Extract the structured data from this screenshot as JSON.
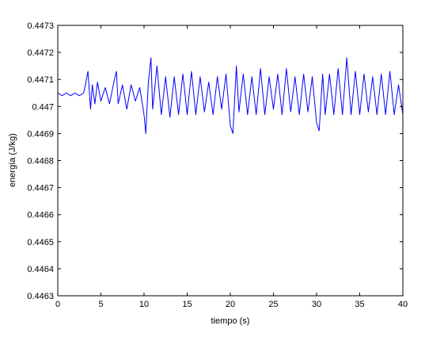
{
  "chart_data": {
    "type": "line",
    "title": "",
    "xlabel": "tiempo (s)",
    "ylabel": "energía (J/kg)",
    "xlim": [
      0,
      40
    ],
    "ylim": [
      0.4463,
      0.4473
    ],
    "xticks": [
      0,
      5,
      10,
      15,
      20,
      25,
      30,
      35,
      40
    ],
    "xtick_labels": [
      "0",
      "5",
      "10",
      "15",
      "20",
      "25",
      "30",
      "35",
      "40"
    ],
    "yticks": [
      0.4463,
      0.4464,
      0.4465,
      0.4466,
      0.4467,
      0.4468,
      0.4469,
      0.447,
      0.4471,
      0.4472,
      0.4473
    ],
    "ytick_labels": [
      "0.4463",
      "0.4464",
      "0.4465",
      "0.4466",
      "0.4467",
      "0.4468",
      "0.4469",
      "0.447",
      "0.4471",
      "0.4472",
      "0.4473"
    ],
    "grid": false,
    "legend": "none",
    "series": [
      {
        "color": "#0000ff",
        "x": [
          0,
          0.5,
          1,
          1.5,
          2,
          2.5,
          3,
          3.2,
          3.5,
          3.8,
          4,
          4.3,
          4.6,
          5,
          5.5,
          6,
          6.5,
          6.8,
          7,
          7.5,
          8,
          8.5,
          9,
          9.5,
          10,
          10.2,
          10.5,
          10.8,
          11,
          11.5,
          12,
          12.5,
          13,
          13.5,
          14,
          14.5,
          15,
          15.5,
          16,
          16.5,
          17,
          17.5,
          18,
          18.5,
          19,
          19.5,
          20,
          20.3,
          20.7,
          21,
          21.5,
          22,
          22.5,
          23,
          23.5,
          24,
          24.5,
          25,
          25.5,
          26,
          26.5,
          27,
          27.5,
          28,
          28.5,
          29,
          29.5,
          30,
          30.3,
          30.7,
          31,
          31.5,
          32,
          32.5,
          33,
          33.5,
          34,
          34.5,
          35,
          35.5,
          36,
          36.5,
          37,
          37.5,
          38,
          38.5,
          39,
          39.5,
          40
        ],
        "values": [
          0.44705,
          0.44704,
          0.44705,
          0.44704,
          0.44705,
          0.44704,
          0.44705,
          0.44708,
          0.44713,
          0.44699,
          0.44708,
          0.44701,
          0.44709,
          0.44702,
          0.44707,
          0.44701,
          0.44709,
          0.44713,
          0.44701,
          0.44708,
          0.44699,
          0.44708,
          0.44702,
          0.44707,
          0.44697,
          0.4469,
          0.44709,
          0.44718,
          0.44699,
          0.44715,
          0.44697,
          0.44711,
          0.44696,
          0.44711,
          0.44697,
          0.44712,
          0.44697,
          0.44713,
          0.44697,
          0.44711,
          0.44698,
          0.44709,
          0.44697,
          0.44711,
          0.44699,
          0.44712,
          0.44693,
          0.4469,
          0.44715,
          0.44698,
          0.44712,
          0.44697,
          0.44711,
          0.44697,
          0.44714,
          0.44697,
          0.44711,
          0.44699,
          0.44712,
          0.44697,
          0.44714,
          0.44698,
          0.44711,
          0.44697,
          0.44712,
          0.44698,
          0.44711,
          0.44694,
          0.44691,
          0.44712,
          0.44697,
          0.44712,
          0.44697,
          0.44714,
          0.44697,
          0.44718,
          0.44697,
          0.44713,
          0.44697,
          0.44712,
          0.44698,
          0.44711,
          0.44697,
          0.44712,
          0.44697,
          0.44713,
          0.44697,
          0.44708,
          0.44697
        ]
      }
    ]
  }
}
